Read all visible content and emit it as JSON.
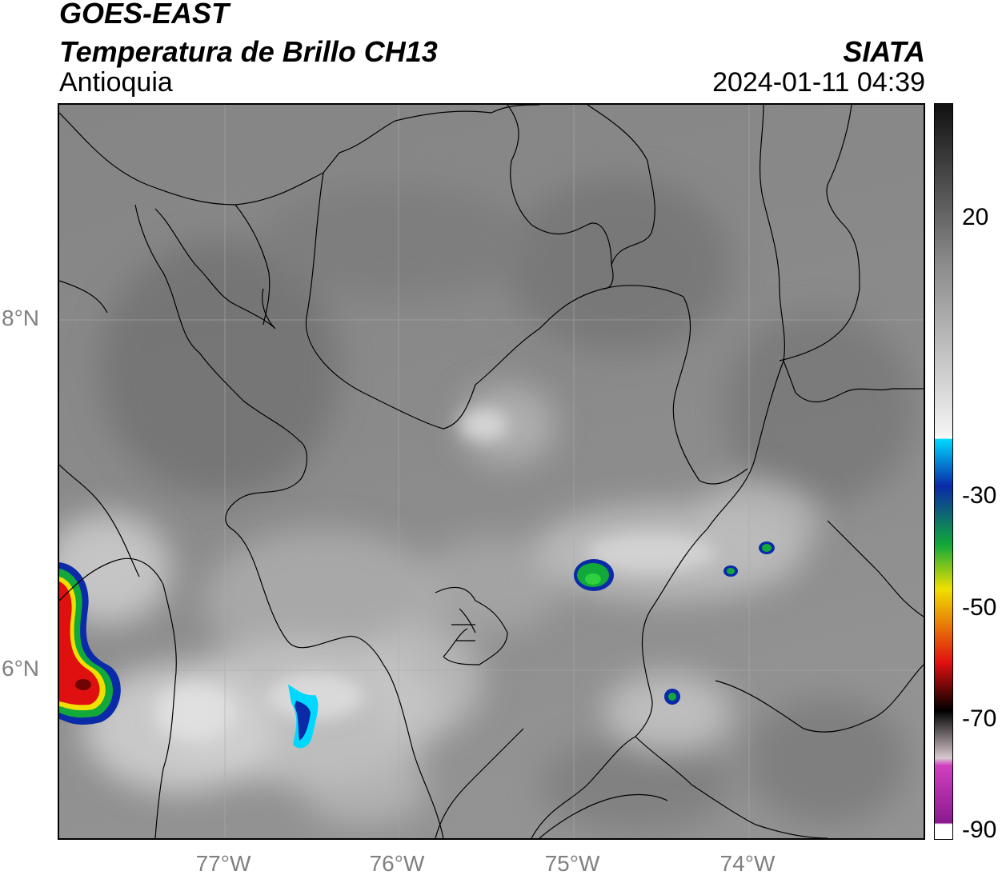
{
  "header": {
    "line1": "GOES-EAST",
    "line2": "Temperatura de Brillo CH13",
    "line3": "Antioquia",
    "org": "SIATA",
    "datetime": "2024-01-11 04:39"
  },
  "axes": {
    "lat_labels": [
      "8°N",
      "6°N"
    ],
    "lon_labels": [
      "77°W",
      "76°W",
      "75°W",
      "74°W"
    ]
  },
  "colorbar": {
    "tick_labels": [
      "20",
      "-30",
      "-50",
      "-70",
      "-90"
    ],
    "colors": {
      "warm_dark": "#111111",
      "warm_gray": "#8c8c8c",
      "cold_white": "#f4f4f4",
      "cyan": "#00d8ff",
      "blue": "#0a2aa8",
      "green": "#12a83a",
      "yellow": "#f0e000",
      "red": "#e01010",
      "black": "#000000",
      "magenta": "#d040c0",
      "purple": "#8a1a90"
    }
  }
}
